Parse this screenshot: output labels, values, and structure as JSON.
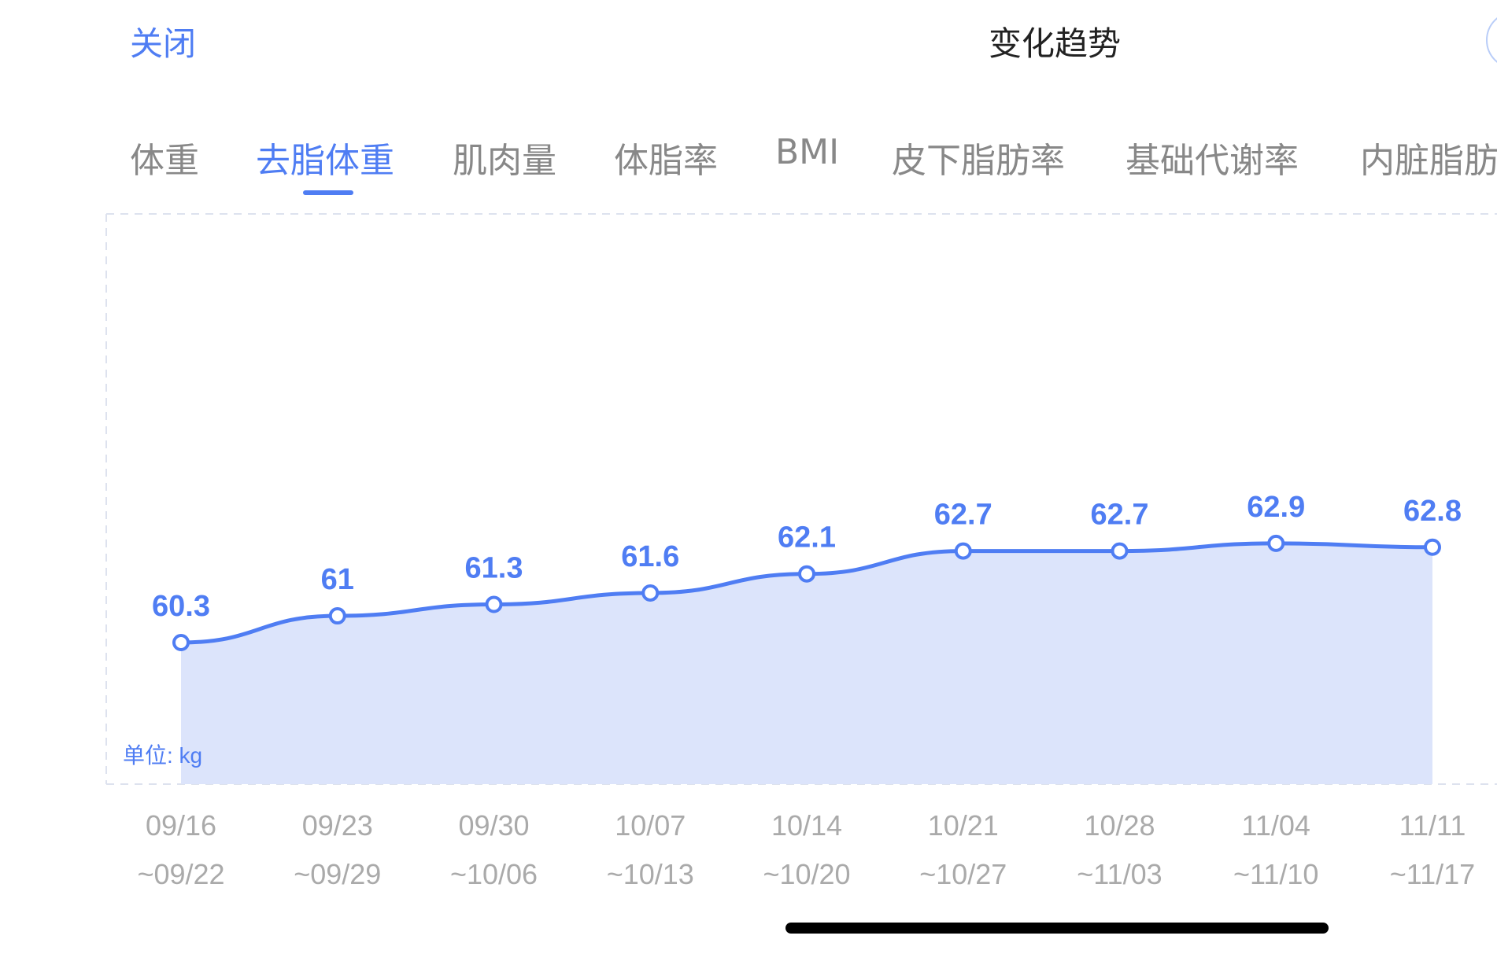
{
  "header": {
    "close_label": "关闭",
    "title": "变化趋势"
  },
  "tabs": [
    {
      "label": "体重",
      "active": false
    },
    {
      "label": "去脂体重",
      "active": true
    },
    {
      "label": "肌肉量",
      "active": false
    },
    {
      "label": "体脂率",
      "active": false
    },
    {
      "label": "BMI",
      "active": false
    },
    {
      "label": "皮下脂肪率",
      "active": false
    },
    {
      "label": "基础代谢率",
      "active": false
    },
    {
      "label": "内脏脂肪",
      "active": false
    }
  ],
  "colors": {
    "accent": "#4f7df3",
    "area_fill": "#dce4fb",
    "tab_inactive": "#888888",
    "axis_text": "#aaaaaa"
  },
  "chart_data": {
    "type": "area",
    "unit_label": "单位: kg",
    "categories": [
      [
        "09/16",
        "~09/22"
      ],
      [
        "09/23",
        "~09/29"
      ],
      [
        "09/30",
        "~10/06"
      ],
      [
        "10/07",
        "~10/13"
      ],
      [
        "10/14",
        "~10/20"
      ],
      [
        "10/21",
        "~10/27"
      ],
      [
        "10/28",
        "~11/03"
      ],
      [
        "11/04",
        "~11/10"
      ],
      [
        "11/11",
        "~11/17"
      ]
    ],
    "values": [
      60.3,
      61,
      61.3,
      61.6,
      62.1,
      62.7,
      62.7,
      62.9,
      62.8
    ],
    "value_labels": [
      "60.3",
      "61",
      "61.3",
      "61.6",
      "62.1",
      "62.7",
      "62.7",
      "62.9",
      "62.8"
    ],
    "grid": false,
    "legend": "none"
  }
}
